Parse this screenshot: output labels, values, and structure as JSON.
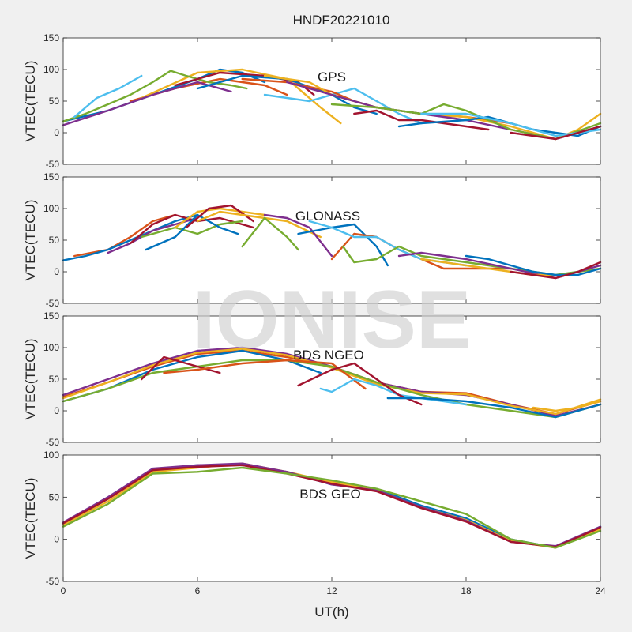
{
  "figure": {
    "title": "HNDF20221010",
    "xlabel": "UT(h)",
    "watermark": "IONISE",
    "background": "#f0f0f0",
    "axes_background": "#ffffff"
  },
  "chart_data": [
    {
      "type": "line",
      "label": "GPS",
      "ylabel": "VTEC(TECU)",
      "xlim": [
        0,
        24
      ],
      "ylim": [
        -50,
        150
      ],
      "xticks": [
        0,
        6,
        12,
        18,
        24
      ],
      "yticks": [
        -50,
        0,
        50,
        100,
        150
      ],
      "series": [
        {
          "color": "#0072BD",
          "x": [
            0,
            2,
            4,
            6,
            7,
            8,
            9
          ],
          "y": [
            18,
            35,
            60,
            85,
            100,
            95,
            80
          ]
        },
        {
          "color": "#D95319",
          "x": [
            3,
            5,
            7,
            9,
            10
          ],
          "y": [
            50,
            70,
            85,
            75,
            60
          ]
        },
        {
          "color": "#EDB120",
          "x": [
            3.5,
            6,
            8,
            10,
            11.5,
            12.4
          ],
          "y": [
            55,
            95,
            100,
            85,
            40,
            15
          ]
        },
        {
          "color": "#7E2F8E",
          "x": [
            0,
            2,
            4,
            6,
            7.5
          ],
          "y": [
            12,
            35,
            60,
            80,
            65
          ]
        },
        {
          "color": "#77AC30",
          "x": [
            0,
            1,
            2,
            3,
            4,
            4.8,
            5.5,
            6.5,
            7.5,
            8.2
          ],
          "y": [
            18,
            30,
            45,
            60,
            80,
            98,
            90,
            80,
            75,
            70
          ]
        },
        {
          "color": "#4DBEEE",
          "x": [
            0.5,
            1.5,
            2.5,
            3.5
          ],
          "y": [
            25,
            55,
            70,
            90
          ]
        },
        {
          "color": "#A2142F",
          "x": [
            5,
            7,
            9,
            10.5,
            11.2
          ],
          "y": [
            75,
            95,
            90,
            80,
            60
          ]
        },
        {
          "color": "#0072BD",
          "x": [
            6,
            8,
            10,
            12,
            13,
            14
          ],
          "y": [
            70,
            90,
            85,
            60,
            40,
            30
          ]
        },
        {
          "color": "#4DBEEE",
          "x": [
            9,
            11,
            12,
            13,
            14,
            15,
            16
          ],
          "y": [
            60,
            50,
            60,
            70,
            50,
            30,
            15
          ]
        },
        {
          "color": "#D95319",
          "x": [
            8,
            10,
            12,
            13,
            14,
            16,
            18,
            20
          ],
          "y": [
            85,
            80,
            65,
            50,
            40,
            30,
            25,
            15
          ]
        },
        {
          "color": "#EDB120",
          "x": [
            9,
            11,
            12,
            14,
            16,
            18,
            20,
            22,
            23,
            24
          ],
          "y": [
            90,
            80,
            60,
            40,
            30,
            25,
            10,
            -10,
            5,
            30
          ]
        },
        {
          "color": "#7E2F8E",
          "x": [
            10,
            12,
            13,
            14,
            16,
            18,
            20,
            22,
            24
          ],
          "y": [
            80,
            60,
            50,
            40,
            30,
            20,
            5,
            -10,
            10
          ]
        },
        {
          "color": "#77AC30",
          "x": [
            12,
            14,
            16,
            17,
            18,
            19,
            20,
            22,
            24
          ],
          "y": [
            45,
            40,
            30,
            45,
            35,
            20,
            5,
            -10,
            15
          ]
        },
        {
          "color": "#A2142F",
          "x": [
            13,
            14,
            15,
            16,
            17,
            18,
            19
          ],
          "y": [
            30,
            35,
            20,
            20,
            15,
            10,
            5
          ]
        },
        {
          "color": "#0072BD",
          "x": [
            15,
            16,
            18,
            19,
            21,
            23,
            24
          ],
          "y": [
            10,
            15,
            20,
            25,
            5,
            -5,
            10
          ]
        },
        {
          "color": "#4DBEEE",
          "x": [
            16,
            18,
            20,
            22,
            24
          ],
          "y": [
            30,
            30,
            15,
            -5,
            5
          ]
        },
        {
          "color": "#A2142F",
          "x": [
            20,
            21,
            22,
            23,
            24
          ],
          "y": [
            0,
            -5,
            -10,
            0,
            10
          ]
        }
      ]
    },
    {
      "type": "line",
      "label": "GLONASS",
      "ylabel": "VTEC(TECU)",
      "xlim": [
        0,
        24
      ],
      "ylim": [
        -50,
        150
      ],
      "xticks": [
        0,
        6,
        12,
        18,
        24
      ],
      "yticks": [
        -50,
        0,
        50,
        100,
        150
      ],
      "series": [
        {
          "color": "#D95319",
          "x": [
            0.5,
            2,
            3,
            4,
            5
          ],
          "y": [
            25,
            35,
            55,
            80,
            90
          ]
        },
        {
          "color": "#0072BD",
          "x": [
            0,
            1,
            2,
            3,
            4,
            5,
            6
          ],
          "y": [
            18,
            25,
            35,
            50,
            65,
            80,
            90
          ]
        },
        {
          "color": "#7E2F8E",
          "x": [
            2,
            3,
            4,
            5,
            6
          ],
          "y": [
            30,
            45,
            65,
            75,
            85
          ]
        },
        {
          "color": "#A2142F",
          "x": [
            3,
            4,
            5,
            6,
            7,
            8.5
          ],
          "y": [
            45,
            75,
            90,
            80,
            85,
            70
          ]
        },
        {
          "color": "#77AC30",
          "x": [
            3.5,
            5,
            6,
            7,
            8
          ],
          "y": [
            55,
            70,
            60,
            75,
            80
          ]
        },
        {
          "color": "#EDB120",
          "x": [
            5,
            6,
            7,
            8,
            9
          ],
          "y": [
            70,
            95,
            100,
            95,
            90
          ]
        },
        {
          "color": "#0072BD",
          "x": [
            3.7,
            5,
            6,
            7,
            7.8
          ],
          "y": [
            35,
            55,
            90,
            70,
            60
          ]
        },
        {
          "color": "#A2142F",
          "x": [
            5.5,
            6.5,
            7.5,
            8.5
          ],
          "y": [
            70,
            100,
            105,
            80
          ]
        },
        {
          "color": "#EDB120",
          "x": [
            6,
            7,
            8,
            9,
            10,
            11.5
          ],
          "y": [
            80,
            95,
            90,
            85,
            80,
            55
          ]
        },
        {
          "color": "#77AC30",
          "x": [
            8,
            9,
            10,
            10.5
          ],
          "y": [
            40,
            85,
            55,
            35
          ]
        },
        {
          "color": "#7E2F8E",
          "x": [
            9,
            10,
            11,
            12
          ],
          "y": [
            90,
            85,
            70,
            25
          ]
        },
        {
          "color": "#0072BD",
          "x": [
            10.5,
            12,
            13,
            14,
            14.5
          ],
          "y": [
            60,
            70,
            75,
            40,
            10
          ]
        },
        {
          "color": "#D95319",
          "x": [
            12,
            13,
            14,
            15,
            16,
            17,
            18,
            20
          ],
          "y": [
            20,
            60,
            55,
            35,
            20,
            5,
            5,
            5
          ]
        },
        {
          "color": "#4DBEEE",
          "x": [
            11,
            12,
            13,
            14,
            15,
            16,
            17,
            18
          ],
          "y": [
            80,
            70,
            55,
            55,
            35,
            20,
            15,
            10
          ]
        },
        {
          "color": "#77AC30",
          "x": [
            12.5,
            13,
            14,
            15,
            16,
            17,
            18,
            20,
            22,
            24
          ],
          "y": [
            40,
            15,
            20,
            40,
            25,
            20,
            15,
            5,
            -5,
            5
          ]
        },
        {
          "color": "#7E2F8E",
          "x": [
            15,
            16,
            17,
            18,
            20,
            22,
            24
          ],
          "y": [
            25,
            30,
            25,
            20,
            5,
            -10,
            10
          ]
        },
        {
          "color": "#EDB120",
          "x": [
            16,
            17,
            18,
            19,
            20,
            21,
            22
          ],
          "y": [
            20,
            15,
            10,
            5,
            0,
            -5,
            -5
          ]
        },
        {
          "color": "#0072BD",
          "x": [
            18,
            19,
            20,
            21,
            22,
            23,
            24
          ],
          "y": [
            25,
            20,
            10,
            0,
            -5,
            -5,
            5
          ]
        },
        {
          "color": "#A2142F",
          "x": [
            20,
            21,
            22,
            23,
            24
          ],
          "y": [
            0,
            -5,
            -10,
            0,
            15
          ]
        }
      ]
    },
    {
      "type": "line",
      "label": "BDS NGEO",
      "ylabel": "VTEC(TECU)",
      "xlim": [
        0,
        24
      ],
      "ylim": [
        -50,
        150
      ],
      "xticks": [
        0,
        6,
        12,
        18,
        24
      ],
      "yticks": [
        -50,
        0,
        50,
        100,
        150
      ],
      "series": [
        {
          "color": "#D95319",
          "x": [
            0,
            2,
            4,
            6,
            8,
            10,
            12,
            14,
            16,
            18,
            20,
            22,
            24
          ],
          "y": [
            22,
            45,
            70,
            90,
            95,
            85,
            70,
            45,
            30,
            28,
            10,
            -5,
            15
          ]
        },
        {
          "color": "#7E2F8E",
          "x": [
            0,
            2,
            4,
            6,
            8,
            10,
            12,
            14,
            16,
            18,
            20,
            22,
            24
          ],
          "y": [
            25,
            50,
            75,
            95,
            100,
            90,
            70,
            45,
            30,
            25,
            10,
            -8,
            10
          ]
        },
        {
          "color": "#EDB120",
          "x": [
            0,
            2,
            4,
            6,
            8,
            10,
            12,
            14,
            16,
            18,
            20,
            22,
            24
          ],
          "y": [
            20,
            45,
            72,
            92,
            98,
            88,
            68,
            42,
            28,
            26,
            8,
            -5,
            18
          ]
        },
        {
          "color": "#0072BD",
          "x": [
            0,
            2,
            4,
            6,
            8,
            10,
            11.5
          ],
          "y": [
            15,
            35,
            65,
            85,
            95,
            80,
            60
          ]
        },
        {
          "color": "#77AC30",
          "x": [
            0,
            2,
            4,
            6,
            8,
            10,
            12,
            14,
            16,
            18,
            20,
            22,
            24
          ],
          "y": [
            15,
            35,
            60,
            70,
            80,
            80,
            70,
            45,
            25,
            10,
            0,
            -10,
            10
          ]
        },
        {
          "color": "#A2142F",
          "x": [
            3.5,
            4.5,
            6,
            7
          ],
          "y": [
            50,
            85,
            70,
            60
          ]
        },
        {
          "color": "#D95319",
          "x": [
            4.5,
            6,
            8,
            10,
            12,
            13.5
          ],
          "y": [
            60,
            65,
            75,
            80,
            75,
            35
          ]
        },
        {
          "color": "#4DBEEE",
          "x": [
            11.5,
            12,
            13,
            14,
            15,
            16,
            18
          ],
          "y": [
            35,
            30,
            50,
            40,
            25,
            20,
            10
          ]
        },
        {
          "color": "#A2142F",
          "x": [
            10.5,
            12,
            13,
            14,
            15,
            16
          ],
          "y": [
            40,
            65,
            75,
            50,
            25,
            10
          ]
        },
        {
          "color": "#0072BD",
          "x": [
            14.5,
            16,
            18,
            20,
            22,
            24
          ],
          "y": [
            20,
            20,
            15,
            5,
            -10,
            10
          ]
        },
        {
          "color": "#EDB120",
          "x": [
            21,
            22,
            23,
            24
          ],
          "y": [
            5,
            0,
            5,
            15
          ]
        }
      ]
    },
    {
      "type": "line",
      "label": "BDS GEO",
      "ylabel": "VTEC(TECU)",
      "xlim": [
        0,
        24
      ],
      "ylim": [
        -50,
        100
      ],
      "xticks": [
        0,
        6,
        12,
        18,
        24
      ],
      "yticks": [
        -50,
        0,
        50,
        100
      ],
      "series": [
        {
          "color": "#0072BD",
          "x": [
            0,
            2,
            4,
            6,
            8,
            10,
            12,
            14,
            16,
            18,
            20,
            22,
            24
          ],
          "y": [
            18,
            48,
            83,
            88,
            88,
            80,
            65,
            60,
            40,
            25,
            0,
            -10,
            15
          ]
        },
        {
          "color": "#EDB120",
          "x": [
            0,
            2,
            4,
            6,
            8,
            10,
            12,
            14,
            16,
            18,
            20,
            22,
            24
          ],
          "y": [
            17,
            45,
            80,
            85,
            90,
            80,
            68,
            58,
            38,
            23,
            -2,
            -10,
            12
          ]
        },
        {
          "color": "#7E2F8E",
          "x": [
            0,
            2,
            4,
            6,
            8,
            10,
            12,
            14,
            16,
            18,
            20,
            22,
            24
          ],
          "y": [
            20,
            50,
            84,
            88,
            90,
            80,
            65,
            58,
            38,
            22,
            -3,
            -8,
            15
          ]
        },
        {
          "color": "#A2142F",
          "x": [
            0,
            2,
            4,
            6,
            8,
            10,
            12,
            14,
            16,
            18,
            20,
            22,
            24
          ],
          "y": [
            19,
            48,
            82,
            86,
            88,
            78,
            66,
            57,
            37,
            21,
            -3,
            -9,
            14
          ]
        },
        {
          "color": "#77AC30",
          "x": [
            0,
            2,
            4,
            6,
            8,
            10,
            12,
            14,
            16,
            18,
            20,
            22,
            24
          ],
          "y": [
            15,
            42,
            78,
            80,
            85,
            78,
            70,
            60,
            45,
            30,
            0,
            -10,
            10
          ]
        }
      ]
    }
  ]
}
